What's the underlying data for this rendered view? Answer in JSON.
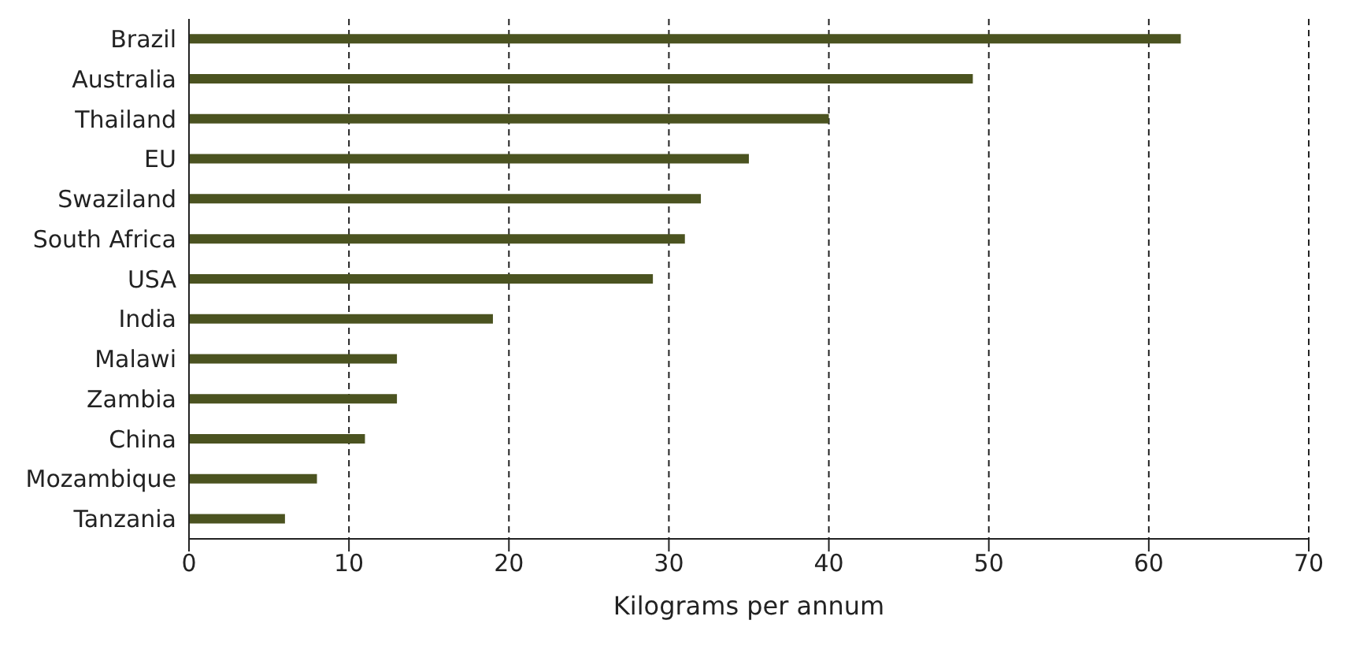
{
  "chart_data": {
    "type": "bar",
    "orientation": "horizontal",
    "xlabel": "Kilograms per annum",
    "categories": [
      "Brazil",
      "Australia",
      "Thailand",
      "EU",
      "Swaziland",
      "South Africa",
      "USA",
      "India",
      "Malawi",
      "Zambia",
      "China",
      "Mozambique",
      "Tanzania"
    ],
    "values": [
      62,
      49,
      40,
      35,
      32,
      31,
      29,
      19,
      13,
      13,
      11,
      8,
      6
    ],
    "color": "#4b5320",
    "xlim": [
      0,
      70
    ],
    "xticks": [
      0,
      10,
      20,
      30,
      40,
      50,
      60,
      70
    ],
    "grid": "x"
  }
}
